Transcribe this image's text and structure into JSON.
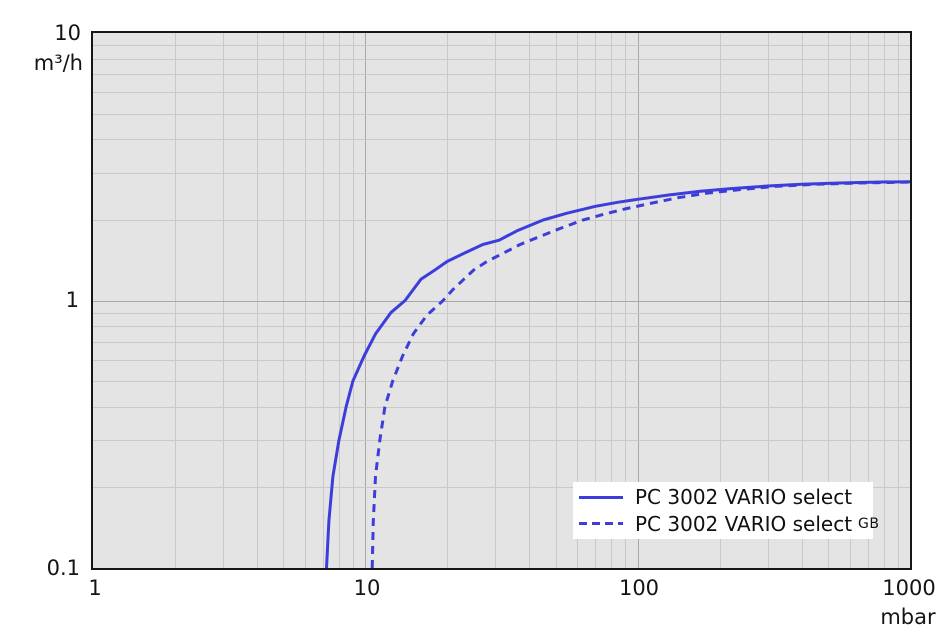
{
  "colors": {
    "accent": "#3d3ddb",
    "plot_bg": "#e4e4e4",
    "grid_minor": "#c9c9c9",
    "grid_major": "#a8a8a8",
    "axis_border": "#161616",
    "legend_bg": "#ffffff",
    "page_bg": "#ffffff",
    "text": "#141414"
  },
  "legend": {
    "items": [
      {
        "label": "PC 3002 VARIO select",
        "suffix": "",
        "line_style": "solid"
      },
      {
        "label": "PC 3002 VARIO select",
        "suffix": "GB",
        "line_style": "dashed"
      }
    ]
  },
  "chart_data": {
    "type": "line",
    "title": "",
    "xlabel": "mbar",
    "ylabel": "m³/h",
    "x_axis": {
      "scale": "log",
      "min": 1,
      "max": 1000,
      "unit": "mbar",
      "tick_labels": [
        "1",
        "10",
        "100",
        "1000"
      ]
    },
    "y_axis": {
      "scale": "log",
      "min": 0.1,
      "max": 10,
      "unit": "m³/h",
      "tick_labels": [
        "10",
        "1",
        "0.1"
      ]
    },
    "grid": "log major and minor gridlines on gray background",
    "legend_position": "inside bottom-right",
    "series": [
      {
        "name": "PC 3002 VARIO select",
        "style": "solid",
        "color": "#3d3ddb",
        "points_mbar_m3h": [
          [
            7.2,
            0.1
          ],
          [
            7.35,
            0.15
          ],
          [
            7.6,
            0.22
          ],
          [
            8.0,
            0.3
          ],
          [
            8.5,
            0.4
          ],
          [
            9.0,
            0.5
          ],
          [
            9.9,
            0.62
          ],
          [
            10.9,
            0.75
          ],
          [
            12.4,
            0.9
          ],
          [
            14.0,
            1.0
          ],
          [
            16.0,
            1.2
          ],
          [
            18.0,
            1.3
          ],
          [
            20.0,
            1.4
          ],
          [
            23.0,
            1.5
          ],
          [
            27.0,
            1.62
          ],
          [
            31.0,
            1.68
          ],
          [
            36.0,
            1.82
          ],
          [
            45.0,
            2.0
          ],
          [
            55.0,
            2.12
          ],
          [
            70.0,
            2.25
          ],
          [
            85.0,
            2.33
          ],
          [
            100.0,
            2.39
          ],
          [
            130.0,
            2.48
          ],
          [
            170.0,
            2.56
          ],
          [
            220.0,
            2.62
          ],
          [
            300.0,
            2.68
          ],
          [
            400.0,
            2.72
          ],
          [
            550.0,
            2.75
          ],
          [
            750.0,
            2.77
          ],
          [
            1000.0,
            2.78
          ]
        ]
      },
      {
        "name": "PC 3002 VARIO select GB",
        "style": "dashed",
        "color": "#3d3ddb",
        "points_mbar_m3h": [
          [
            10.6,
            0.1
          ],
          [
            10.7,
            0.15
          ],
          [
            10.9,
            0.22
          ],
          [
            11.3,
            0.3
          ],
          [
            11.8,
            0.4
          ],
          [
            12.6,
            0.5
          ],
          [
            13.7,
            0.62
          ],
          [
            15.0,
            0.75
          ],
          [
            16.8,
            0.88
          ],
          [
            19.3,
            1.0
          ],
          [
            21.0,
            1.1
          ],
          [
            23.0,
            1.2
          ],
          [
            25.0,
            1.3
          ],
          [
            28.0,
            1.4
          ],
          [
            32.0,
            1.5
          ],
          [
            37.0,
            1.62
          ],
          [
            44.0,
            1.74
          ],
          [
            52.0,
            1.86
          ],
          [
            63.0,
            2.0
          ],
          [
            75.0,
            2.1
          ],
          [
            90.0,
            2.2
          ],
          [
            110.0,
            2.3
          ],
          [
            140.0,
            2.42
          ],
          [
            180.0,
            2.52
          ],
          [
            240.0,
            2.6
          ],
          [
            320.0,
            2.67
          ],
          [
            450.0,
            2.72
          ],
          [
            650.0,
            2.75
          ],
          [
            1000.0,
            2.77
          ]
        ]
      }
    ]
  }
}
